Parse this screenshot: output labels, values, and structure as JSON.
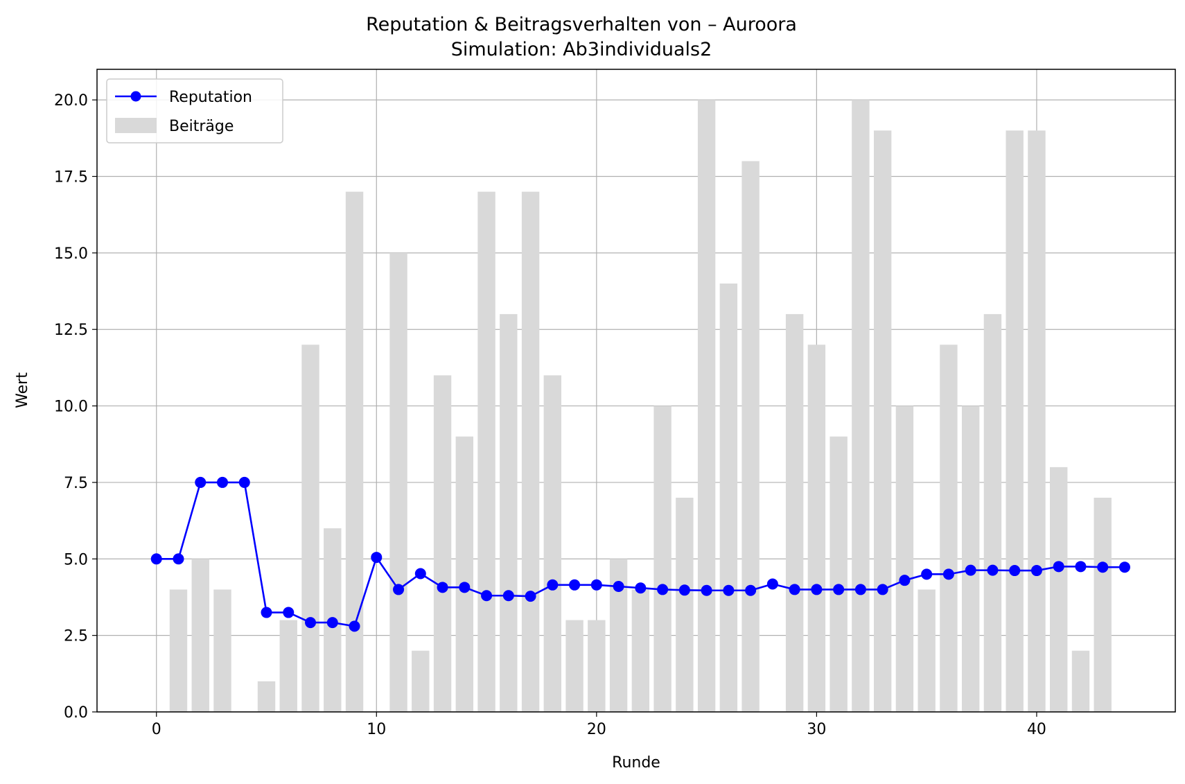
{
  "chart_data": {
    "type": "bar+line",
    "title": "Reputation & Beitragsverhalten von – Auroora",
    "subtitle": "Simulation: Ab3individuals2",
    "xlabel": "Runde",
    "ylabel": "Wert",
    "xlim": [
      -2.7,
      46.3
    ],
    "ylim": [
      0,
      21
    ],
    "xticks": [
      0,
      10,
      20,
      30,
      40
    ],
    "yticks": [
      0.0,
      2.5,
      5.0,
      7.5,
      10.0,
      12.5,
      15.0,
      17.5,
      20.0
    ],
    "xtick_labels": [
      "0",
      "10",
      "20",
      "30",
      "40"
    ],
    "ytick_labels": [
      "0.0",
      "2.5",
      "5.0",
      "7.5",
      "10.0",
      "12.5",
      "15.0",
      "17.5",
      "20.0"
    ],
    "grid": true,
    "legend_position": "top-left",
    "series": [
      {
        "name": "Reputation",
        "kind": "line",
        "color": "#0000ff",
        "x": [
          0,
          1,
          2,
          3,
          4,
          5,
          6,
          7,
          8,
          9,
          10,
          11,
          12,
          13,
          14,
          15,
          16,
          17,
          18,
          19,
          20,
          21,
          22,
          23,
          24,
          25,
          26,
          27,
          28,
          29,
          30,
          31,
          32,
          33,
          34,
          35,
          36,
          37,
          38,
          39,
          40,
          41,
          42,
          43,
          44
        ],
        "values": [
          5.0,
          5.0,
          7.5,
          7.5,
          7.5,
          3.25,
          3.25,
          2.92,
          2.92,
          2.8,
          5.05,
          4.0,
          4.52,
          4.07,
          4.07,
          3.8,
          3.8,
          3.78,
          4.15,
          4.15,
          4.15,
          4.1,
          4.05,
          4.0,
          3.98,
          3.97,
          3.97,
          3.97,
          4.18,
          4.0,
          4.0,
          4.0,
          4.0,
          4.0,
          4.3,
          4.5,
          4.5,
          4.63,
          4.63,
          4.62,
          4.62,
          4.75,
          4.75,
          4.73,
          4.73
        ]
      },
      {
        "name": "Beiträge",
        "kind": "bar",
        "color": "#d9d9d9",
        "x": [
          0,
          1,
          2,
          3,
          4,
          5,
          6,
          7,
          8,
          9,
          10,
          11,
          12,
          13,
          14,
          15,
          16,
          17,
          18,
          19,
          20,
          21,
          22,
          23,
          24,
          25,
          26,
          27,
          28,
          29,
          30,
          31,
          32,
          33,
          34,
          35,
          36,
          37,
          38,
          39,
          40,
          41,
          42,
          43,
          44
        ],
        "values": [
          0,
          4,
          5,
          4,
          0,
          1,
          3,
          12,
          6,
          17,
          0,
          15,
          2,
          11,
          9,
          17,
          13,
          17,
          11,
          3,
          3,
          5,
          4,
          10,
          7,
          20,
          14,
          18,
          0,
          13,
          12,
          9,
          20,
          19,
          10,
          4,
          12,
          10,
          13,
          19,
          19,
          8,
          2,
          7,
          0
        ]
      }
    ]
  },
  "legend": {
    "reputation_label": "Reputation",
    "contributions_label": "Beiträge"
  }
}
